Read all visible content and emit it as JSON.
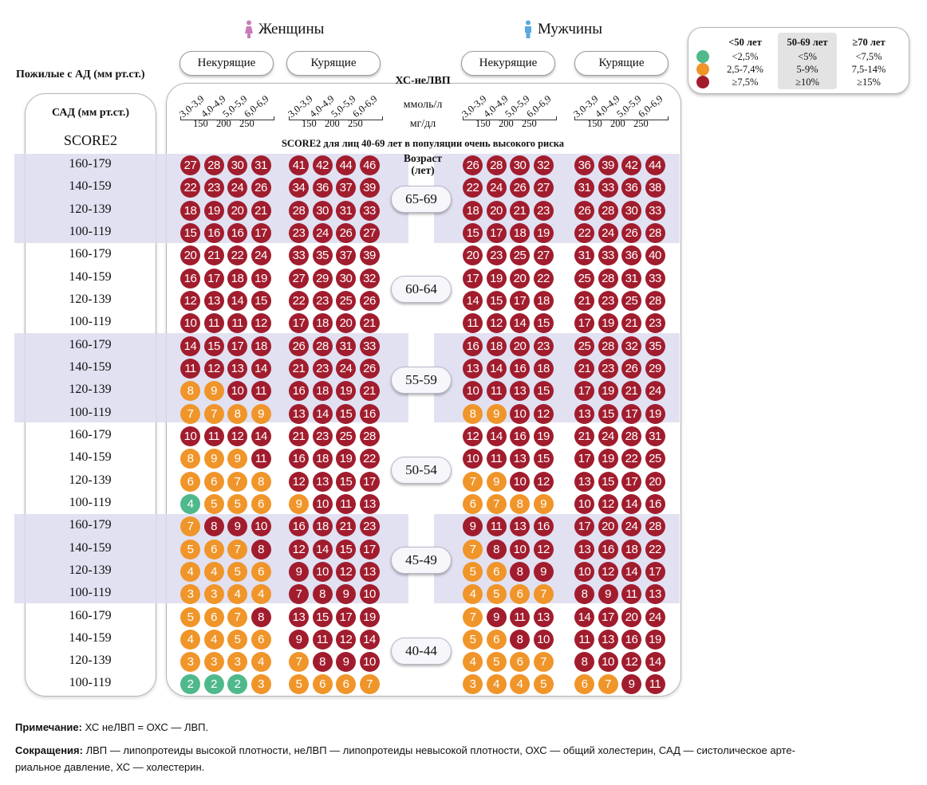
{
  "colors": {
    "red": "#a11d2e",
    "orange": "#f0952a",
    "green": "#4fb98c",
    "band": "#dcdcf0"
  },
  "header": {
    "women": "Женщины",
    "men": "Мужчины",
    "women_icon": "female-icon",
    "men_icon": "male-icon",
    "nonsmoking": "Некурящие",
    "smoking": "Курящие",
    "elderly_label": "Пожилые с АД (мм рт.ст.)",
    "nonhdl": "ХС-неЛВП",
    "mmol": "ммоль/л",
    "mgdl": "мг/дл",
    "score_caption": "SCORE2 для лиц 40-69 лет в популяции очень высокого риска",
    "age_header": "Возраст (лет)",
    "sad_header": "САД (мм рт.ст.)",
    "score2": "SCORE2"
  },
  "chol_mmol": [
    "3,0-3,9",
    "4,0-4,9",
    "5,0-5,9",
    "6,0-6,9"
  ],
  "chol_mg": [
    "150",
    "200",
    "250"
  ],
  "sbp_rows": [
    "160-179",
    "140-159",
    "120-139",
    "100-119"
  ],
  "ages": [
    "65-69",
    "60-64",
    "55-59",
    "50-54",
    "45-49",
    "40-44"
  ],
  "grid": [
    {
      "women_ns": [
        [
          27,
          28,
          30,
          31
        ],
        [
          22,
          23,
          24,
          26
        ],
        [
          18,
          19,
          20,
          21
        ],
        [
          15,
          16,
          16,
          17
        ]
      ],
      "women_s": [
        [
          41,
          42,
          44,
          46
        ],
        [
          34,
          36,
          37,
          39
        ],
        [
          28,
          30,
          31,
          33
        ],
        [
          23,
          24,
          26,
          27
        ]
      ],
      "men_ns": [
        [
          26,
          28,
          30,
          32
        ],
        [
          22,
          24,
          26,
          27
        ],
        [
          18,
          20,
          21,
          23
        ],
        [
          15,
          17,
          18,
          19
        ]
      ],
      "men_s": [
        [
          36,
          39,
          42,
          44
        ],
        [
          31,
          33,
          36,
          38
        ],
        [
          26,
          28,
          30,
          33
        ],
        [
          22,
          24,
          26,
          28
        ]
      ]
    },
    {
      "women_ns": [
        [
          20,
          21,
          22,
          24
        ],
        [
          16,
          17,
          18,
          19
        ],
        [
          12,
          13,
          14,
          15
        ],
        [
          10,
          11,
          11,
          12
        ]
      ],
      "women_s": [
        [
          33,
          35,
          37,
          39
        ],
        [
          27,
          29,
          30,
          32
        ],
        [
          22,
          23,
          25,
          26
        ],
        [
          17,
          18,
          20,
          21
        ]
      ],
      "men_ns": [
        [
          20,
          23,
          25,
          27
        ],
        [
          17,
          19,
          20,
          22
        ],
        [
          14,
          15,
          17,
          18
        ],
        [
          11,
          12,
          14,
          15
        ]
      ],
      "men_s": [
        [
          31,
          33,
          36,
          40
        ],
        [
          25,
          28,
          31,
          33
        ],
        [
          21,
          23,
          25,
          28
        ],
        [
          17,
          19,
          21,
          23
        ]
      ]
    },
    {
      "women_ns": [
        [
          14,
          15,
          17,
          18
        ],
        [
          11,
          12,
          13,
          14
        ],
        [
          8,
          9,
          10,
          11
        ],
        [
          7,
          7,
          8,
          9
        ]
      ],
      "women_s": [
        [
          26,
          28,
          31,
          33
        ],
        [
          21,
          23,
          24,
          26
        ],
        [
          16,
          18,
          19,
          21
        ],
        [
          13,
          14,
          15,
          16
        ]
      ],
      "men_ns": [
        [
          16,
          18,
          20,
          23
        ],
        [
          13,
          14,
          16,
          18
        ],
        [
          10,
          11,
          13,
          15
        ],
        [
          8,
          9,
          10,
          12
        ]
      ],
      "men_s": [
        [
          25,
          28,
          32,
          35
        ],
        [
          21,
          23,
          26,
          29
        ],
        [
          17,
          19,
          21,
          24
        ],
        [
          13,
          15,
          17,
          19
        ]
      ]
    },
    {
      "women_ns": [
        [
          10,
          11,
          12,
          14
        ],
        [
          8,
          9,
          9,
          11
        ],
        [
          6,
          6,
          7,
          8
        ],
        [
          4,
          5,
          5,
          6
        ]
      ],
      "women_s": [
        [
          21,
          23,
          25,
          28
        ],
        [
          16,
          18,
          19,
          22
        ],
        [
          12,
          13,
          15,
          17
        ],
        [
          9,
          10,
          11,
          13
        ]
      ],
      "men_ns": [
        [
          12,
          14,
          16,
          19
        ],
        [
          10,
          11,
          13,
          15
        ],
        [
          7,
          9,
          10,
          12
        ],
        [
          6,
          7,
          8,
          9
        ]
      ],
      "men_s": [
        [
          21,
          24,
          28,
          31
        ],
        [
          17,
          19,
          22,
          25
        ],
        [
          13,
          15,
          17,
          20
        ],
        [
          10,
          12,
          14,
          16
        ]
      ]
    },
    {
      "women_ns": [
        [
          7,
          8,
          9,
          10
        ],
        [
          5,
          6,
          7,
          8
        ],
        [
          4,
          4,
          5,
          6
        ],
        [
          3,
          3,
          4,
          4
        ]
      ],
      "women_s": [
        [
          16,
          18,
          21,
          23
        ],
        [
          12,
          14,
          15,
          17
        ],
        [
          9,
          10,
          12,
          13
        ],
        [
          7,
          8,
          9,
          10
        ]
      ],
      "men_ns": [
        [
          9,
          11,
          13,
          16
        ],
        [
          7,
          8,
          10,
          12
        ],
        [
          5,
          6,
          8,
          9
        ],
        [
          4,
          5,
          6,
          7
        ]
      ],
      "men_s": [
        [
          17,
          20,
          24,
          28
        ],
        [
          13,
          16,
          18,
          22
        ],
        [
          10,
          12,
          14,
          17
        ],
        [
          8,
          9,
          11,
          13
        ]
      ]
    },
    {
      "women_ns": [
        [
          5,
          6,
          7,
          8
        ],
        [
          4,
          4,
          5,
          6
        ],
        [
          3,
          3,
          3,
          4
        ],
        [
          2,
          2,
          2,
          3
        ]
      ],
      "women_s": [
        [
          13,
          15,
          17,
          19
        ],
        [
          9,
          11,
          12,
          14
        ],
        [
          7,
          8,
          9,
          10
        ],
        [
          5,
          6,
          6,
          7
        ]
      ],
      "men_ns": [
        [
          7,
          9,
          11,
          13
        ],
        [
          5,
          6,
          8,
          10
        ],
        [
          4,
          5,
          6,
          7
        ],
        [
          3,
          4,
          4,
          5
        ]
      ],
      "men_s": [
        [
          14,
          17,
          20,
          24
        ],
        [
          11,
          13,
          16,
          19
        ],
        [
          8,
          10,
          12,
          14
        ],
        [
          6,
          7,
          9,
          11
        ]
      ]
    }
  ],
  "legend": {
    "h1": "<50 лет",
    "h2": "50-69 лет",
    "h3": "≥70 лет",
    "r1": [
      "<2,5%",
      "<5%",
      "<7,5%"
    ],
    "r2": [
      "2,5-7,4%",
      "5-9%",
      "7,5-14%"
    ],
    "r3": [
      "≥7,5%",
      "≥10%",
      "≥15%"
    ]
  },
  "notes": {
    "note_label": "Примечание:",
    "note_text": " ХС неЛВП = ОХС — ЛВП.",
    "abbr_label": "Сокращения:",
    "abbr_text": " ЛВП — липопротеиды высокой плотности, неЛВП — липопротеиды невысокой плотности, ОХС — общий холестерин, САД — систолическое арте-",
    "abbr_text2": "риальное давление, ХС — холестерин."
  }
}
